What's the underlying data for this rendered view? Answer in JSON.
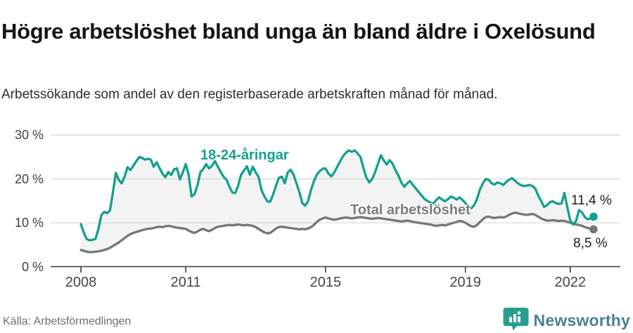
{
  "header": {
    "title": "Högre arbetslöshet bland unga än bland äldre i Oxelösund",
    "subtitle": "Arbetssökande som andel av den registerbaserade arbetskraften månad för månad."
  },
  "footer": {
    "source": "Källa: Arbetsförmedlingen",
    "brand": "Newsworthy",
    "brand_icon": "bar-chart-speech-bubble-icon"
  },
  "colors": {
    "young_line": "#14a08e",
    "total_line": "#767676",
    "total_label": "#7b7b7b",
    "band_fill": "#f3f3f3",
    "gridline": "#d9d9d9",
    "axis": "#3c3c3c",
    "value_label": "#1b1b1b",
    "brand_bubble": "#2a9d8f",
    "brand_text": "#4b8291"
  },
  "chart_data": {
    "type": "line",
    "unit": "%",
    "frequency": "monthly",
    "x_start_year": 2008,
    "x_end": "2022 (september)",
    "ylim": [
      0,
      32
    ],
    "grid": "horizontal",
    "yticks": [
      {
        "value": 0,
        "label": "0 %"
      },
      {
        "value": 10,
        "label": "10 %"
      },
      {
        "value": 20,
        "label": "20 %"
      },
      {
        "value": 30,
        "label": "30 %"
      }
    ],
    "xticks": [
      2008,
      2011,
      2015,
      2019,
      2022
    ],
    "series": [
      {
        "name": "18-24-åringar",
        "color": "#14a08e",
        "end_label": "11,4 %",
        "end_value": 11.4,
        "values": [
          9.7,
          7.8,
          6.3,
          6.0,
          6.1,
          6.3,
          8.5,
          11.7,
          12.5,
          12.2,
          12.8,
          17.0,
          21.4,
          19.8,
          19.0,
          20.5,
          22.7,
          22.0,
          23.0,
          24.0,
          25.0,
          24.8,
          24.4,
          24.6,
          24.4,
          22.8,
          23.8,
          22.5,
          21.2,
          20.4,
          21.6,
          20.9,
          22.2,
          22.4,
          19.9,
          21.5,
          23.4,
          21.0,
          16.0,
          16.5,
          18.5,
          21.5,
          22.3,
          23.4,
          22.4,
          23.0,
          24.1,
          22.8,
          21.6,
          20.5,
          19.8,
          18.2,
          16.9,
          16.8,
          18.5,
          21.0,
          21.9,
          22.9,
          21.0,
          22.8,
          21.5,
          20.5,
          17.5,
          16.0,
          14.9,
          14.8,
          16.5,
          18.5,
          20.3,
          20.5,
          19.0,
          21.5,
          22.1,
          21.0,
          19.0,
          17.0,
          14.5,
          13.9,
          15.0,
          17.5,
          19.5,
          21.0,
          21.8,
          22.3,
          22.4,
          21.2,
          20.6,
          21.5,
          22.8,
          24.0,
          25.2,
          26.0,
          26.5,
          26.2,
          26.5,
          25.8,
          25.0,
          22.5,
          20.3,
          19.2,
          20.0,
          21.5,
          23.5,
          25.4,
          24.2,
          23.3,
          24.3,
          23.5,
          22.0,
          20.8,
          19.2,
          18.2,
          19.0,
          19.5,
          18.6,
          17.8,
          17.0,
          16.2,
          15.4,
          15.0,
          14.6,
          14.4,
          15.2,
          15.8,
          15.3,
          14.9,
          15.4,
          16.0,
          15.7,
          15.3,
          15.8,
          15.2,
          14.5,
          13.8,
          13.3,
          14.0,
          15.5,
          17.6,
          19.0,
          20.0,
          19.8,
          19.0,
          18.7,
          19.2,
          19.0,
          18.6,
          19.3,
          19.8,
          20.2,
          19.6,
          19.0,
          18.6,
          18.4,
          18.5,
          18.6,
          18.4,
          17.8,
          16.2,
          15.0,
          13.6,
          14.0,
          14.7,
          14.9,
          14.5,
          14.3,
          14.4,
          16.8,
          13.5,
          10.5,
          9.6,
          10.4,
          12.9,
          12.4,
          11.3,
          10.8,
          11.0,
          11.4
        ]
      },
      {
        "name": "Total arbetslöshet",
        "color": "#767676",
        "end_label": "8,5 %",
        "end_value": 8.5,
        "values": [
          3.8,
          3.6,
          3.4,
          3.3,
          3.3,
          3.4,
          3.5,
          3.6,
          3.8,
          4.0,
          4.3,
          4.7,
          5.1,
          5.5,
          6.0,
          6.5,
          7.0,
          7.4,
          7.7,
          7.9,
          8.1,
          8.3,
          8.5,
          8.6,
          8.7,
          8.8,
          9.0,
          9.1,
          9.0,
          9.2,
          9.3,
          9.2,
          9.0,
          8.9,
          8.8,
          8.7,
          8.6,
          8.2,
          7.9,
          7.7,
          8.0,
          8.4,
          8.6,
          8.3,
          8.1,
          8.4,
          8.8,
          9.1,
          9.2,
          9.3,
          9.4,
          9.5,
          9.4,
          9.5,
          9.6,
          9.5,
          9.4,
          9.5,
          9.4,
          9.3,
          9.0,
          8.6,
          8.2,
          7.8,
          7.6,
          7.7,
          8.2,
          8.7,
          9.0,
          9.1,
          9.0,
          8.9,
          8.8,
          8.7,
          8.6,
          8.5,
          8.6,
          8.5,
          8.7,
          9.0,
          9.5,
          10.2,
          10.7,
          11.0,
          11.2,
          11.0,
          10.8,
          10.7,
          10.8,
          11.0,
          11.1,
          11.2,
          11.1,
          11.0,
          11.1,
          11.2,
          11.3,
          11.2,
          11.1,
          11.0,
          10.9,
          11.0,
          11.1,
          11.0,
          10.9,
          10.8,
          10.7,
          10.6,
          10.5,
          10.4,
          10.3,
          10.4,
          10.5,
          10.4,
          10.2,
          10.1,
          10.0,
          9.9,
          9.8,
          9.7,
          9.6,
          9.4,
          9.3,
          9.4,
          9.5,
          9.4,
          9.6,
          9.8,
          10.0,
          10.2,
          10.4,
          10.3,
          10.0,
          9.6,
          9.2,
          9.1,
          9.5,
          10.2,
          10.8,
          11.3,
          11.4,
          11.2,
          11.1,
          11.2,
          11.3,
          11.2,
          11.4,
          11.8,
          12.1,
          12.3,
          12.2,
          12.0,
          11.9,
          11.8,
          11.9,
          12.0,
          11.8,
          11.4,
          11.0,
          10.7,
          10.5,
          10.5,
          10.6,
          10.5,
          10.4,
          10.5,
          10.4,
          10.2,
          10.0,
          9.8,
          9.6,
          9.5,
          9.3,
          9.0,
          8.8,
          8.6,
          8.5
        ]
      }
    ]
  }
}
